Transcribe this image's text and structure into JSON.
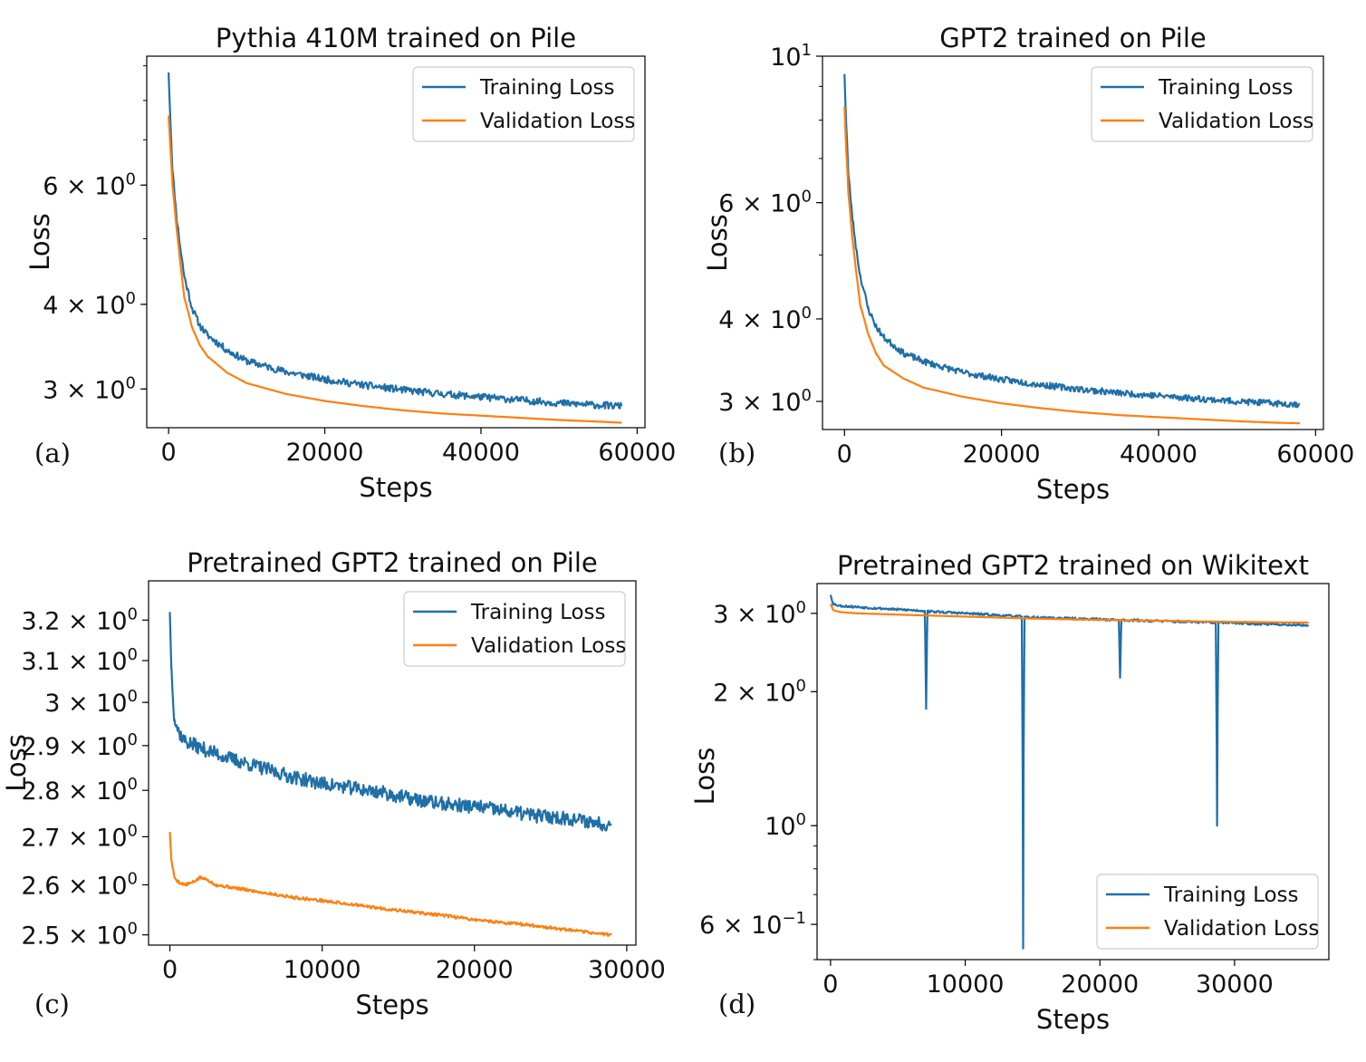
{
  "colors": {
    "training": "#1f6fa8",
    "validation": "#ff7f0e"
  },
  "chart_data": [
    {
      "panel_label": "(a)",
      "type": "line",
      "title": "Pythia 410M trained on Pile",
      "xlabel": "Steps",
      "ylabel": "Loss",
      "yscale": "log",
      "xlim": [
        -2800,
        61000
      ],
      "ylim": [
        2.63,
        9.3
      ],
      "xticks": [
        0,
        20000,
        40000,
        60000
      ],
      "xtick_labels": [
        "0",
        "20000",
        "40000",
        "60000"
      ],
      "yticks": [
        6,
        4,
        3
      ],
      "ytick_labels": [
        {
          "base": "6 × 10",
          "exp": "0"
        },
        {
          "base": "4 × 10",
          "exp": "0"
        },
        {
          "base": "3 × 10",
          "exp": "0"
        }
      ],
      "legend": {
        "position": "upper right",
        "entries": [
          "Training Loss",
          "Validation Loss"
        ]
      },
      "series": [
        {
          "name": "Training Loss",
          "color_key": "training",
          "x": [
            0,
            200,
            500,
            1000,
            1500,
            2000,
            3000,
            4000,
            5000,
            7500,
            10000,
            15000,
            20000,
            25000,
            30000,
            35000,
            40000,
            45000,
            50000,
            55000,
            58000
          ],
          "y": [
            8.8,
            7.6,
            6.3,
            5.4,
            4.85,
            4.4,
            3.95,
            3.72,
            3.6,
            3.42,
            3.3,
            3.18,
            3.1,
            3.04,
            2.99,
            2.95,
            2.92,
            2.89,
            2.86,
            2.84,
            2.83
          ],
          "noise": 0.012,
          "seed": 11
        },
        {
          "name": "Validation Loss",
          "color_key": "validation",
          "x": [
            0,
            200,
            500,
            1000,
            1500,
            2000,
            3000,
            4000,
            5000,
            7500,
            10000,
            15000,
            20000,
            25000,
            30000,
            35000,
            40000,
            45000,
            50000,
            55000,
            58000
          ],
          "y": [
            7.6,
            6.9,
            6.0,
            5.2,
            4.6,
            4.1,
            3.7,
            3.48,
            3.35,
            3.17,
            3.06,
            2.95,
            2.88,
            2.83,
            2.79,
            2.76,
            2.74,
            2.72,
            2.7,
            2.685,
            2.675
          ],
          "noise": 0,
          "seed": 0
        }
      ]
    },
    {
      "panel_label": "(b)",
      "type": "line",
      "title": "GPT2 trained on Pile",
      "xlabel": "Steps",
      "ylabel": "Loss",
      "yscale": "log",
      "xlim": [
        -2800,
        61000
      ],
      "ylim": [
        2.72,
        10.0
      ],
      "xticks": [
        0,
        20000,
        40000,
        60000
      ],
      "xtick_labels": [
        "0",
        "20000",
        "40000",
        "60000"
      ],
      "yticks": [
        10,
        6,
        4,
        3
      ],
      "ytick_labels": [
        {
          "base": "10",
          "exp": "1"
        },
        {
          "base": "6 × 10",
          "exp": "0"
        },
        {
          "base": "4 × 10",
          "exp": "0"
        },
        {
          "base": "3 × 10",
          "exp": "0"
        }
      ],
      "legend": {
        "position": "upper right",
        "entries": [
          "Training Loss",
          "Validation Loss"
        ]
      },
      "series": [
        {
          "name": "Training Loss",
          "color_key": "training",
          "x": [
            0,
            200,
            500,
            1000,
            1500,
            2000,
            3000,
            4000,
            5000,
            7500,
            10000,
            15000,
            20000,
            25000,
            30000,
            35000,
            40000,
            45000,
            50000,
            55000,
            58000
          ],
          "y": [
            9.4,
            8.0,
            6.6,
            5.7,
            5.1,
            4.65,
            4.15,
            3.9,
            3.75,
            3.55,
            3.45,
            3.32,
            3.24,
            3.18,
            3.13,
            3.09,
            3.06,
            3.03,
            3.0,
            2.98,
            2.97
          ],
          "noise": 0.011,
          "seed": 23
        },
        {
          "name": "Validation Loss",
          "color_key": "validation",
          "x": [
            0,
            200,
            500,
            1000,
            1500,
            2000,
            3000,
            4000,
            5000,
            7500,
            10000,
            15000,
            20000,
            25000,
            30000,
            35000,
            40000,
            45000,
            50000,
            55000,
            58000
          ],
          "y": [
            8.4,
            7.3,
            6.2,
            5.3,
            4.7,
            4.2,
            3.8,
            3.55,
            3.4,
            3.25,
            3.15,
            3.05,
            2.98,
            2.93,
            2.89,
            2.86,
            2.84,
            2.82,
            2.8,
            2.785,
            2.78
          ],
          "noise": 0,
          "seed": 0
        }
      ]
    },
    {
      "panel_label": "(c)",
      "type": "line",
      "title": "Pretrained GPT2 trained on Pile",
      "xlabel": "Steps",
      "ylabel": "Loss",
      "yscale": "log",
      "xlim": [
        -1400,
        30600
      ],
      "ylim": [
        2.48,
        3.3
      ],
      "xticks": [
        0,
        10000,
        20000,
        30000
      ],
      "xtick_labels": [
        "0",
        "10000",
        "20000",
        "30000"
      ],
      "yticks": [
        3.2,
        3.1,
        3.0,
        2.9,
        2.8,
        2.7,
        2.6,
        2.5
      ],
      "ytick_labels": [
        {
          "base": "3.2 × 10",
          "exp": "0"
        },
        {
          "base": "3.1 × 10",
          "exp": "0"
        },
        {
          "base": "3 × 10",
          "exp": "0"
        },
        {
          "base": "2.9 × 10",
          "exp": "0"
        },
        {
          "base": "2.8 × 10",
          "exp": "0"
        },
        {
          "base": "2.7 × 10",
          "exp": "0"
        },
        {
          "base": "2.6 × 10",
          "exp": "0"
        },
        {
          "base": "2.5 × 10",
          "exp": "0"
        }
      ],
      "legend": {
        "position": "upper right",
        "entries": [
          "Training Loss",
          "Validation Loss"
        ]
      },
      "series": [
        {
          "name": "Training Loss",
          "color_key": "training",
          "x": [
            0,
            100,
            300,
            600,
            1000,
            2000,
            4000,
            6000,
            8000,
            10000,
            12000,
            14000,
            16000,
            18000,
            20000,
            22000,
            24000,
            26000,
            28000,
            29000
          ],
          "y": [
            3.22,
            3.08,
            2.96,
            2.93,
            2.91,
            2.895,
            2.87,
            2.85,
            2.83,
            2.815,
            2.805,
            2.795,
            2.78,
            2.77,
            2.765,
            2.755,
            2.745,
            2.74,
            2.73,
            2.725
          ],
          "noise": 0.0055,
          "seed": 37
        },
        {
          "name": "Validation Loss",
          "color_key": "validation",
          "x": [
            0,
            100,
            300,
            600,
            1000,
            1500,
            2000,
            2500,
            3000,
            4000,
            6000,
            8000,
            10000,
            12000,
            14000,
            16000,
            18000,
            20000,
            22000,
            24000,
            26000,
            28000,
            29000
          ],
          "y": [
            2.71,
            2.65,
            2.615,
            2.605,
            2.6,
            2.605,
            2.615,
            2.61,
            2.6,
            2.595,
            2.585,
            2.575,
            2.568,
            2.56,
            2.552,
            2.545,
            2.538,
            2.53,
            2.524,
            2.518,
            2.51,
            2.503,
            2.5
          ],
          "noise": 0.0012,
          "seed": 5
        }
      ]
    },
    {
      "panel_label": "(d)",
      "type": "line",
      "title": "Pretrained GPT2 trained on Wikitext",
      "xlabel": "Steps",
      "ylabel": "Loss",
      "yscale": "log",
      "xlim": [
        -1000,
        37000
      ],
      "ylim": [
        0.5,
        3.5
      ],
      "xticks": [
        0,
        10000,
        20000,
        30000
      ],
      "xtick_labels": [
        "0",
        "10000",
        "20000",
        "30000"
      ],
      "yticks": [
        3,
        2,
        1,
        0.6
      ],
      "ytick_labels": [
        {
          "base": "3 × 10",
          "exp": "0"
        },
        {
          "base": "2 × 10",
          "exp": "0"
        },
        {
          "base": "10",
          "exp": "0"
        },
        {
          "base": "6 × 10",
          "exp": "−1"
        }
      ],
      "legend": {
        "position": "lower right",
        "entries": [
          "Training Loss",
          "Validation Loss"
        ]
      },
      "series": [
        {
          "name": "Training Loss",
          "color_key": "training",
          "x": [
            0,
            200,
            700,
            2000,
            5000,
            7000,
            7100,
            7200,
            7300,
            10000,
            14200,
            14300,
            14400,
            14500,
            18000,
            21400,
            21500,
            21600,
            25000,
            28600,
            28700,
            28800,
            32000,
            35500
          ],
          "y": [
            3.3,
            3.15,
            3.12,
            3.1,
            3.06,
            3.04,
            1.83,
            3.04,
            3.03,
            3.0,
            2.95,
            0.53,
            2.95,
            2.94,
            2.92,
            2.9,
            2.15,
            2.9,
            2.88,
            2.86,
            1.0,
            2.86,
            2.84,
            2.82
          ],
          "noise": 0.006,
          "seed": 53
        },
        {
          "name": "Validation Loss",
          "color_key": "validation",
          "x": [
            0,
            200,
            700,
            2000,
            5000,
            10000,
            15000,
            20000,
            25000,
            30000,
            35500
          ],
          "y": [
            3.15,
            3.05,
            3.02,
            3.0,
            2.98,
            2.95,
            2.92,
            2.9,
            2.885,
            2.87,
            2.86
          ],
          "noise": 0,
          "seed": 0
        }
      ]
    }
  ]
}
